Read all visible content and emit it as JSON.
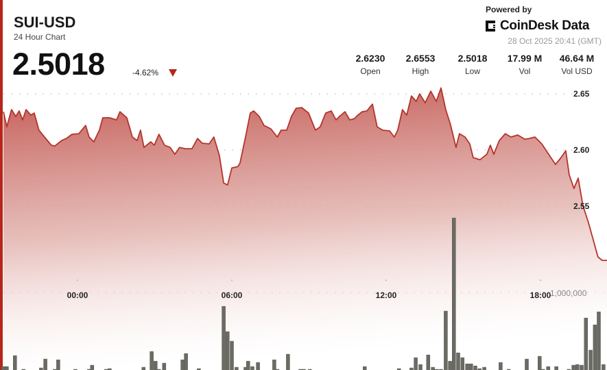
{
  "header": {
    "title": "SUI-USD",
    "subtitle": "24 Hour Chart",
    "price": "2.5018",
    "change": "-4.62%",
    "change_direction_icon": "triangle-down-icon"
  },
  "branding": {
    "powered_by": "Powered by",
    "logo_text": "CoinDesk Data",
    "timestamp": "28 Oct 2025 20:41 (GMT)"
  },
  "stats": [
    {
      "value": "2.6230",
      "label": "Open"
    },
    {
      "value": "2.6553",
      "label": "High"
    },
    {
      "value": "2.5018",
      "label": "Low"
    },
    {
      "value": "17.99 M",
      "label": "Vol"
    },
    {
      "value": "46.64 M",
      "label": "Vol USD"
    }
  ],
  "colors": {
    "line": "#b5332a",
    "area_top": "#c0504a",
    "volume_bar": "#6b6b64",
    "accent": "#b7261b"
  },
  "chart_data": {
    "type": "area",
    "x_ticks": [
      "00:00",
      "06:00",
      "12:00",
      "18:00"
    ],
    "y_ticks": [
      "2.65",
      "2.60",
      "2.55"
    ],
    "y_tick_values": [
      2.65,
      2.6,
      2.55
    ],
    "volume_tick_label": "1,000,000",
    "volume_tick_value": 1000000,
    "grid": "dotted horizontal",
    "price_series": {
      "t": [
        "21:07",
        "21:15",
        "21:26",
        "21:36",
        "21:44",
        "21:52",
        "22:00",
        "22:11",
        "22:19",
        "22:30",
        "22:43",
        "22:59",
        "23:07",
        "23:23",
        "23:34",
        "23:47",
        "00:03",
        "00:19",
        "00:27",
        "00:38",
        "00:51",
        "00:59",
        "01:15",
        "01:31",
        "01:39",
        "01:55",
        "02:08",
        "02:19",
        "02:27",
        "02:35",
        "02:51",
        "02:59",
        "03:10",
        "03:23",
        "03:36",
        "03:47",
        "03:58",
        "04:11",
        "04:27",
        "04:40",
        "04:51",
        "05:07",
        "05:18",
        "05:31",
        "05:41",
        "05:50",
        "06:00",
        "06:14",
        "06:19",
        "06:32",
        "06:43",
        "06:51",
        "07:04",
        "07:15",
        "07:31",
        "07:46",
        "07:55",
        "08:08",
        "08:19",
        "08:30",
        "08:43",
        "08:59",
        "09:15",
        "09:26",
        "09:39",
        "09:52",
        "10:03",
        "10:11",
        "10:24",
        "10:35",
        "10:46",
        "10:54",
        "11:04",
        "11:15",
        "11:28",
        "11:39",
        "11:52",
        "12:08",
        "12:19",
        "12:27",
        "12:38",
        "12:48",
        "12:59",
        "13:10",
        "13:18",
        "13:31",
        "13:44",
        "13:57",
        "14:08",
        "14:19",
        "14:30",
        "14:43",
        "14:51",
        "15:04",
        "15:15",
        "15:23",
        "15:39",
        "15:55",
        "16:03",
        "16:11",
        "16:24",
        "16:38",
        "16:51",
        "17:07",
        "17:23",
        "17:34",
        "17:47",
        "18:03",
        "18:19",
        "18:35",
        "18:48",
        "18:59",
        "19:07",
        "19:18",
        "19:28",
        "19:39",
        "19:52",
        "20:03",
        "20:14",
        "20:24",
        "20:35"
      ],
      "price": [
        2.6341,
        2.6207,
        2.636,
        2.6299,
        2.6348,
        2.6268,
        2.636,
        2.6311,
        2.6329,
        2.6177,
        2.6116,
        2.6043,
        2.6036,
        2.6085,
        2.6103,
        2.614,
        2.6146,
        2.6219,
        2.6116,
        2.6073,
        2.6177,
        2.6287,
        2.6287,
        2.6268,
        2.6341,
        2.6287,
        2.6116,
        2.6085,
        2.6177,
        2.6024,
        2.6073,
        2.6043,
        2.614,
        2.6043,
        2.6024,
        2.5963,
        2.6024,
        2.6012,
        2.6012,
        2.6103,
        2.6061,
        2.6055,
        2.6116,
        2.5951,
        2.5707,
        2.5689,
        2.5841,
        2.5853,
        2.5884,
        2.6116,
        2.6329,
        2.6348,
        2.6299,
        2.6219,
        2.6189,
        2.6116,
        2.6177,
        2.6177,
        2.6299,
        2.6372,
        2.6378,
        2.6329,
        2.6177,
        2.6207,
        2.6329,
        2.6348,
        2.6268,
        2.6299,
        2.6341,
        2.6268,
        2.628,
        2.6311,
        2.6341,
        2.6348,
        2.6409,
        2.6207,
        2.6177,
        2.6171,
        2.6116,
        2.6177,
        2.636,
        2.6311,
        2.6482,
        2.6433,
        2.65,
        2.6421,
        2.6524,
        2.6433,
        2.6553,
        2.636,
        2.6226,
        2.6024,
        2.6146,
        2.6116,
        2.6055,
        2.5933,
        2.5914,
        2.5963,
        2.6043,
        2.5963,
        2.6085,
        2.6146,
        2.6116,
        2.6134,
        2.6097,
        2.6103,
        2.6116,
        2.6055,
        2.5963,
        2.5872,
        2.5933,
        2.5994,
        2.578,
        2.5658,
        2.575,
        2.5506,
        2.5353,
        2.5201,
        2.5048,
        2.5018,
        2.5018
      ]
    },
    "volume_series": {
      "t": [
        "21:07",
        "21:15",
        "21:34",
        "21:54",
        "22:35",
        "22:45",
        "23:07",
        "23:15",
        "23:55",
        "00:27",
        "00:34",
        "01:07",
        "01:15",
        "02:34",
        "02:53",
        "03:02",
        "03:10",
        "03:22",
        "04:05",
        "04:13",
        "04:43",
        "05:41",
        "05:50",
        "06:00",
        "06:11",
        "06:32",
        "06:38",
        "06:48",
        "07:01",
        "07:39",
        "07:46",
        "08:11",
        "08:40",
        "08:48",
        "09:02",
        "11:10",
        "12:30",
        "12:59",
        "13:09",
        "13:20",
        "13:38",
        "13:49",
        "13:58",
        "14:08",
        "14:19",
        "14:29",
        "14:38",
        "14:48",
        "14:58",
        "15:09",
        "15:18",
        "15:28",
        "15:38",
        "15:49",
        "16:27",
        "16:46",
        "17:28",
        "17:58",
        "18:06",
        "18:18",
        "18:37",
        "19:06",
        "19:17",
        "19:26",
        "19:36",
        "19:46",
        "19:57",
        "20:07",
        "20:16",
        "20:27"
      ],
      "volume": [
        85000,
        85000,
        220000,
        51000,
        68000,
        178000,
        51000,
        169000,
        51000,
        51000,
        102000,
        51000,
        59000,
        76000,
        271000,
        152000,
        51000,
        127000,
        169000,
        246000,
        59000,
        830000,
        517000,
        398000,
        76000,
        76000,
        152000,
        85000,
        136000,
        169000,
        51000,
        237000,
        51000,
        51000,
        51000,
        85000,
        59000,
        68000,
        195000,
        110000,
        229000,
        76000,
        51000,
        51000,
        771000,
        152000,
        1923000,
        254000,
        195000,
        119000,
        119000,
        93000,
        59000,
        76000,
        136000,
        51000,
        178000,
        212000,
        51000,
        85000,
        85000,
        51000,
        102000,
        110000,
        102000,
        686000,
        288000,
        601000,
        762000,
        110000
      ]
    }
  }
}
